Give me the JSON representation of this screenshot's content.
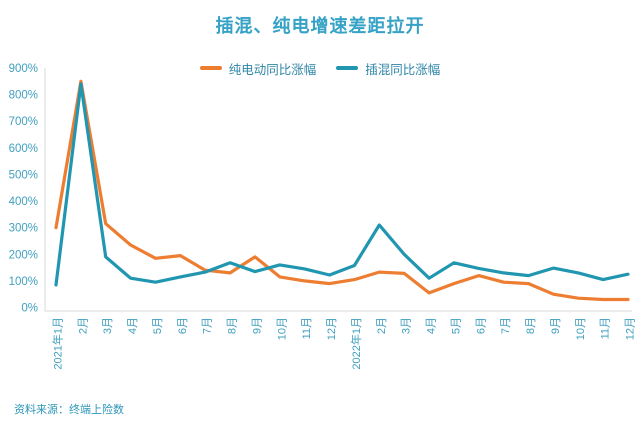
{
  "title": "插混、纯电增速差距拉开",
  "source": "资料来源：终端上险数",
  "colors": {
    "background": "#FFFFFF",
    "title": "#35A2C6",
    "axis_text": "#41A0C0",
    "legend_text": "#2F86A7",
    "source_text": "#2E96B8",
    "axis_line": "#D9D9D9",
    "pure_ev_line": "#ED7D31",
    "phev_line": "#2196B0"
  },
  "chart_data": {
    "type": "line",
    "title": "插混、纯电增速差距拉开",
    "xlabel": "",
    "ylabel": "",
    "ylim": [
      0,
      900
    ],
    "ytick_step": 100,
    "ytick_suffix": "%",
    "grid": false,
    "legend_position": "top",
    "categories": [
      "2021年1月",
      "2月",
      "3月",
      "4月",
      "5月",
      "6月",
      "7月",
      "8月",
      "9月",
      "10月",
      "11月",
      "12月",
      "2022年1月",
      "2月",
      "3月",
      "4月",
      "5月",
      "6月",
      "7月",
      "8月",
      "9月",
      "10月",
      "11月",
      "12月"
    ],
    "series": [
      {
        "name": "纯电动同比涨幅",
        "color": "#ED7D31",
        "values": [
          300,
          850,
          315,
          235,
          185,
          195,
          140,
          130,
          190,
          115,
          100,
          90,
          105,
          133,
          128,
          55,
          90,
          120,
          95,
          90,
          50,
          35,
          30,
          30
        ]
      },
      {
        "name": "插混同比涨幅",
        "color": "#2196B0",
        "values": [
          85,
          840,
          190,
          110,
          95,
          115,
          133,
          168,
          135,
          160,
          145,
          122,
          158,
          310,
          200,
          110,
          168,
          147,
          130,
          120,
          148,
          130,
          105,
          125
        ]
      }
    ]
  }
}
